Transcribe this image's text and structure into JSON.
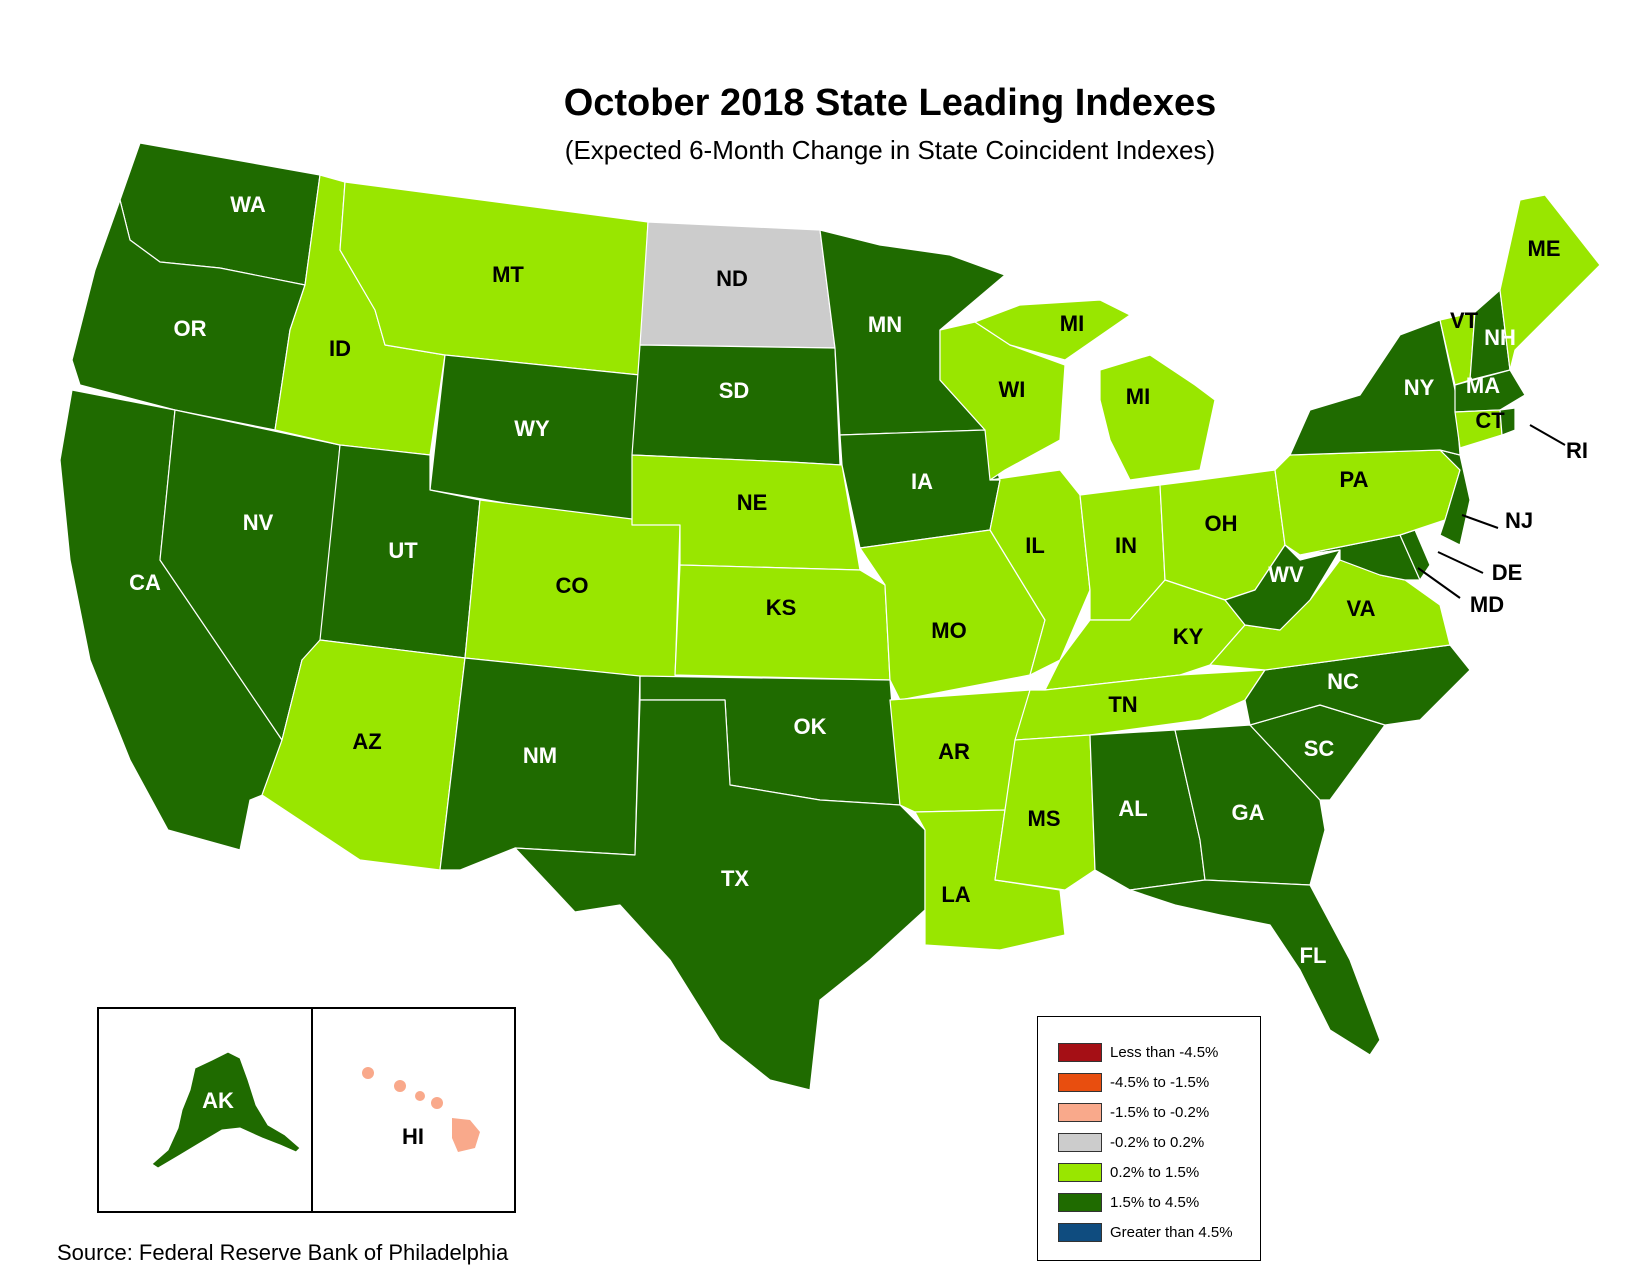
{
  "title": "October 2018 State Leading Indexes",
  "subtitle": "(Expected 6-Month Change in State Coincident Indexes)",
  "source": "Source: Federal Reserve Bank of Philadelphia",
  "colors": {
    "less_than_-4.5": "#a50f15",
    "-4.5_to_-1.5": "#e84e0f",
    "-1.5_to_-0.2": "#f9a98b",
    "-0.2_to_0.2": "#cccccc",
    "0.2_to_1.5": "#99e600",
    "1.5_to_4.5": "#1f6b00",
    "greater_than_4.5": "#0f4c7f"
  },
  "legend": {
    "items": [
      {
        "label": "Less than -4.5%",
        "color": "#a50f15"
      },
      {
        "label": "-4.5% to -1.5%",
        "color": "#e84e0f"
      },
      {
        "label": "-1.5% to -0.2%",
        "color": "#f9a98b"
      },
      {
        "label": "-0.2% to 0.2%",
        "color": "#cccccc"
      },
      {
        "label": "0.2% to 1.5%",
        "color": "#99e600"
      },
      {
        "label": "1.5% to 4.5%",
        "color": "#1f6b00"
      },
      {
        "label": "Greater than 4.5%",
        "color": "#0f4c7f"
      }
    ]
  },
  "states": {
    "WA": {
      "label": "WA",
      "category": "1.5% to 4.5%"
    },
    "OR": {
      "label": "OR",
      "category": "1.5% to 4.5%"
    },
    "CA": {
      "label": "CA",
      "category": "1.5% to 4.5%"
    },
    "NV": {
      "label": "NV",
      "category": "1.5% to 4.5%"
    },
    "ID": {
      "label": "ID",
      "category": "0.2% to 1.5%"
    },
    "MT": {
      "label": "MT",
      "category": "0.2% to 1.5%"
    },
    "WY": {
      "label": "WY",
      "category": "1.5% to 4.5%"
    },
    "UT": {
      "label": "UT",
      "category": "1.5% to 4.5%"
    },
    "AZ": {
      "label": "AZ",
      "category": "0.2% to 1.5%"
    },
    "CO": {
      "label": "CO",
      "category": "0.2% to 1.5%"
    },
    "NM": {
      "label": "NM",
      "category": "1.5% to 4.5%"
    },
    "ND": {
      "label": "ND",
      "category": "-0.2% to 0.2%"
    },
    "SD": {
      "label": "SD",
      "category": "1.5% to 4.5%"
    },
    "NE": {
      "label": "NE",
      "category": "0.2% to 1.5%"
    },
    "KS": {
      "label": "KS",
      "category": "0.2% to 1.5%"
    },
    "OK": {
      "label": "OK",
      "category": "1.5% to 4.5%"
    },
    "TX": {
      "label": "TX",
      "category": "1.5% to 4.5%"
    },
    "MN": {
      "label": "MN",
      "category": "1.5% to 4.5%"
    },
    "IA": {
      "label": "IA",
      "category": "1.5% to 4.5%"
    },
    "MO": {
      "label": "MO",
      "category": "0.2% to 1.5%"
    },
    "AR": {
      "label": "AR",
      "category": "0.2% to 1.5%"
    },
    "LA": {
      "label": "LA",
      "category": "0.2% to 1.5%"
    },
    "WI": {
      "label": "WI",
      "category": "0.2% to 1.5%"
    },
    "MI": {
      "label": "MI",
      "category": "0.2% to 1.5%"
    },
    "MI_UP": {
      "label": "MI",
      "category": "0.2% to 1.5%"
    },
    "IL": {
      "label": "IL",
      "category": "0.2% to 1.5%"
    },
    "IN": {
      "label": "IN",
      "category": "0.2% to 1.5%"
    },
    "OH": {
      "label": "OH",
      "category": "0.2% to 1.5%"
    },
    "KY": {
      "label": "KY",
      "category": "0.2% to 1.5%"
    },
    "TN": {
      "label": "TN",
      "category": "0.2% to 1.5%"
    },
    "MS": {
      "label": "MS",
      "category": "0.2% to 1.5%"
    },
    "AL": {
      "label": "AL",
      "category": "1.5% to 4.5%"
    },
    "GA": {
      "label": "GA",
      "category": "1.5% to 4.5%"
    },
    "FL": {
      "label": "FL",
      "category": "1.5% to 4.5%"
    },
    "SC": {
      "label": "SC",
      "category": "1.5% to 4.5%"
    },
    "NC": {
      "label": "NC",
      "category": "1.5% to 4.5%"
    },
    "VA": {
      "label": "VA",
      "category": "0.2% to 1.5%"
    },
    "WV": {
      "label": "WV",
      "category": "1.5% to 4.5%"
    },
    "PA": {
      "label": "PA",
      "category": "0.2% to 1.5%"
    },
    "NY": {
      "label": "NY",
      "category": "1.5% to 4.5%"
    },
    "VT": {
      "label": "VT",
      "category": "0.2% to 1.5%"
    },
    "NH": {
      "label": "NH",
      "category": "1.5% to 4.5%"
    },
    "ME": {
      "label": "ME",
      "category": "0.2% to 1.5%"
    },
    "MA": {
      "label": "MA",
      "category": "1.5% to 4.5%"
    },
    "CT": {
      "label": "CT",
      "category": "0.2% to 1.5%"
    },
    "RI": {
      "label": "RI",
      "category": "1.5% to 4.5%"
    },
    "NJ": {
      "label": "NJ",
      "category": "1.5% to 4.5%"
    },
    "DE": {
      "label": "DE",
      "category": "1.5% to 4.5%"
    },
    "MD": {
      "label": "MD",
      "category": "1.5% to 4.5%"
    },
    "AK": {
      "label": "AK",
      "category": "1.5% to 4.5%"
    },
    "HI": {
      "label": "HI",
      "category": "-1.5% to -0.2%"
    }
  }
}
